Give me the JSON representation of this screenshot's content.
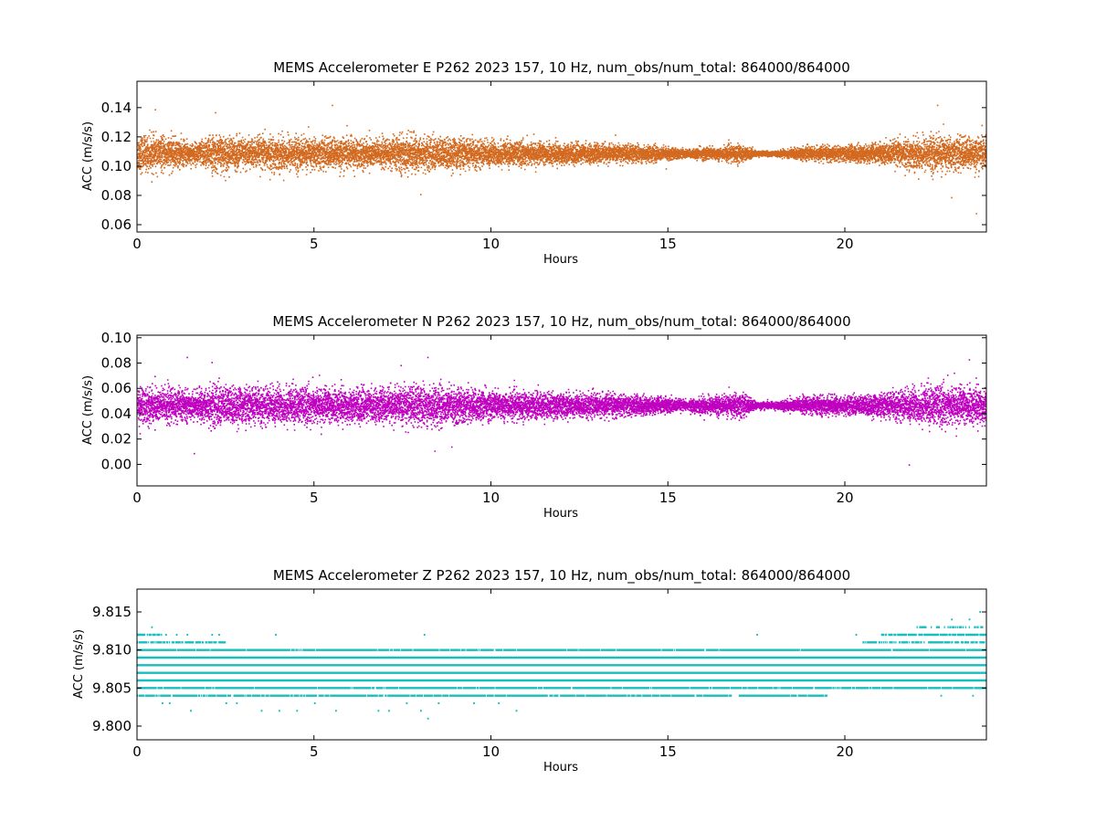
{
  "chart_data": [
    {
      "type": "scatter",
      "title": "MEMS Accelerometer E P262 2023 157, 10 Hz, num_obs/num_total: 864000/864000",
      "xlabel": "Hours",
      "ylabel": "ACC (m/s/s)",
      "xlim": [
        0,
        24
      ],
      "ylim": [
        0.055,
        0.158
      ],
      "xticks": [
        0,
        5,
        10,
        15,
        20
      ],
      "yticks": [
        0.06,
        0.08,
        0.1,
        0.12,
        0.14
      ],
      "ytick_decimals": 2,
      "color": "#d2691e",
      "center": 0.109,
      "spread_profile": {
        "hours": [
          0,
          1,
          1.6,
          2.1,
          3,
          4,
          5,
          6,
          7,
          7.5,
          8,
          9,
          10,
          11,
          12,
          13,
          14,
          15,
          15.5,
          16,
          16.5,
          17,
          17.5,
          18,
          18.5,
          19,
          20,
          21,
          22,
          22.5,
          23,
          24
        ],
        "spread": [
          0.014,
          0.012,
          0.008,
          0.014,
          0.012,
          0.013,
          0.012,
          0.012,
          0.011,
          0.014,
          0.013,
          0.012,
          0.01,
          0.009,
          0.008,
          0.007,
          0.007,
          0.005,
          0.003,
          0.005,
          0.005,
          0.007,
          0.002,
          0.002,
          0.004,
          0.005,
          0.006,
          0.008,
          0.012,
          0.014,
          0.013,
          0.012
        ]
      },
      "outliers": [
        [
          0.5,
          0.139
        ],
        [
          2.2,
          0.137
        ],
        [
          5.5,
          0.142
        ],
        [
          8.0,
          0.081
        ],
        [
          22.6,
          0.142
        ],
        [
          23.0,
          0.079
        ],
        [
          23.7,
          0.068
        ]
      ]
    },
    {
      "type": "scatter",
      "title": "MEMS Accelerometer N P262 2023 157, 10 Hz, num_obs/num_total: 864000/864000",
      "xlabel": "Hours",
      "ylabel": "ACC (m/s/s)",
      "xlim": [
        0,
        24
      ],
      "ylim": [
        -0.017,
        0.102
      ],
      "xticks": [
        0,
        5,
        10,
        15,
        20
      ],
      "yticks": [
        0.0,
        0.02,
        0.04,
        0.06,
        0.08,
        0.1
      ],
      "ytick_decimals": 2,
      "color": "#bf00bf",
      "center": 0.047,
      "spread_profile": {
        "hours": [
          0,
          1,
          1.6,
          2.1,
          3,
          4,
          5,
          6,
          7,
          7.5,
          8,
          9,
          10,
          11,
          12,
          13,
          14,
          15,
          15.5,
          16,
          16.5,
          17,
          17.5,
          18,
          18.5,
          19,
          20,
          21,
          22,
          22.5,
          23,
          24
        ],
        "spread": [
          0.017,
          0.016,
          0.011,
          0.019,
          0.016,
          0.017,
          0.016,
          0.015,
          0.014,
          0.018,
          0.018,
          0.016,
          0.013,
          0.012,
          0.011,
          0.01,
          0.009,
          0.007,
          0.004,
          0.008,
          0.008,
          0.012,
          0.003,
          0.003,
          0.006,
          0.008,
          0.008,
          0.01,
          0.016,
          0.018,
          0.017,
          0.016
        ]
      },
      "outliers": [
        [
          1.4,
          0.085
        ],
        [
          2.1,
          0.081
        ],
        [
          8.2,
          0.085
        ],
        [
          1.6,
          0.009
        ],
        [
          8.4,
          0.011
        ],
        [
          21.8,
          0.0
        ],
        [
          23.5,
          0.083
        ]
      ]
    },
    {
      "type": "scatter",
      "title": "MEMS Accelerometer Z P262 2023 157, 10 Hz, num_obs/num_total: 864000/864000",
      "xlabel": "Hours",
      "ylabel": "ACC (m/s/s)",
      "xlim": [
        0,
        24
      ],
      "ylim": [
        9.7982,
        9.818
      ],
      "xticks": [
        0,
        5,
        10,
        15,
        20
      ],
      "yticks": [
        9.8,
        9.805,
        9.81,
        9.815
      ],
      "ytick_decimals": 3,
      "color": "#17bebe",
      "levels": [
        {
          "y": 9.804,
          "segments": [
            [
              0,
              16.8
            ],
            [
              17.0,
              19.5
            ]
          ],
          "density": 0.9
        },
        {
          "y": 9.805,
          "segments": [
            [
              0,
              24
            ]
          ],
          "density": 0.95
        },
        {
          "y": 9.806,
          "segments": [
            [
              0,
              24
            ]
          ],
          "density": 1.0
        },
        {
          "y": 9.807,
          "segments": [
            [
              0,
              24
            ]
          ],
          "density": 1.0
        },
        {
          "y": 9.808,
          "segments": [
            [
              0,
              24
            ]
          ],
          "density": 1.0
        },
        {
          "y": 9.809,
          "segments": [
            [
              0,
              24
            ]
          ],
          "density": 1.0
        },
        {
          "y": 9.81,
          "segments": [
            [
              0,
              24
            ]
          ],
          "density": 0.95
        },
        {
          "y": 9.811,
          "segments": [
            [
              0,
              2.5
            ],
            [
              20.5,
              24
            ]
          ],
          "density": 0.7
        },
        {
          "y": 9.812,
          "segments": [
            [
              0,
              0.7
            ],
            [
              21.0,
              24
            ]
          ],
          "density": 0.85
        },
        {
          "y": 9.813,
          "segments": [
            [
              22.0,
              24
            ]
          ],
          "density": 0.5
        }
      ],
      "sparse_points": [
        [
          0.4,
          9.813
        ],
        [
          0.8,
          9.812
        ],
        [
          1.1,
          9.812
        ],
        [
          1.4,
          9.812
        ],
        [
          2.1,
          9.812
        ],
        [
          2.3,
          9.812
        ],
        [
          3.9,
          9.812
        ],
        [
          8.1,
          9.812
        ],
        [
          17.5,
          9.812
        ],
        [
          20.3,
          9.812
        ],
        [
          23.0,
          9.814
        ],
        [
          23.5,
          9.814
        ],
        [
          23.8,
          9.815
        ],
        [
          0.7,
          9.803
        ],
        [
          0.9,
          9.803
        ],
        [
          1.5,
          9.802
        ],
        [
          2.5,
          9.803
        ],
        [
          2.8,
          9.803
        ],
        [
          3.5,
          9.802
        ],
        [
          4.0,
          9.802
        ],
        [
          4.5,
          9.802
        ],
        [
          5.0,
          9.803
        ],
        [
          5.6,
          9.802
        ],
        [
          6.8,
          9.802
        ],
        [
          7.1,
          9.802
        ],
        [
          7.6,
          9.803
        ],
        [
          8.0,
          9.802
        ],
        [
          8.2,
          9.801
        ],
        [
          8.5,
          9.803
        ],
        [
          9.5,
          9.803
        ],
        [
          10.2,
          9.803
        ],
        [
          10.7,
          9.802
        ],
        [
          18.6,
          9.804
        ],
        [
          22.7,
          9.804
        ],
        [
          23.2,
          9.805
        ],
        [
          23.6,
          9.804
        ]
      ]
    }
  ]
}
